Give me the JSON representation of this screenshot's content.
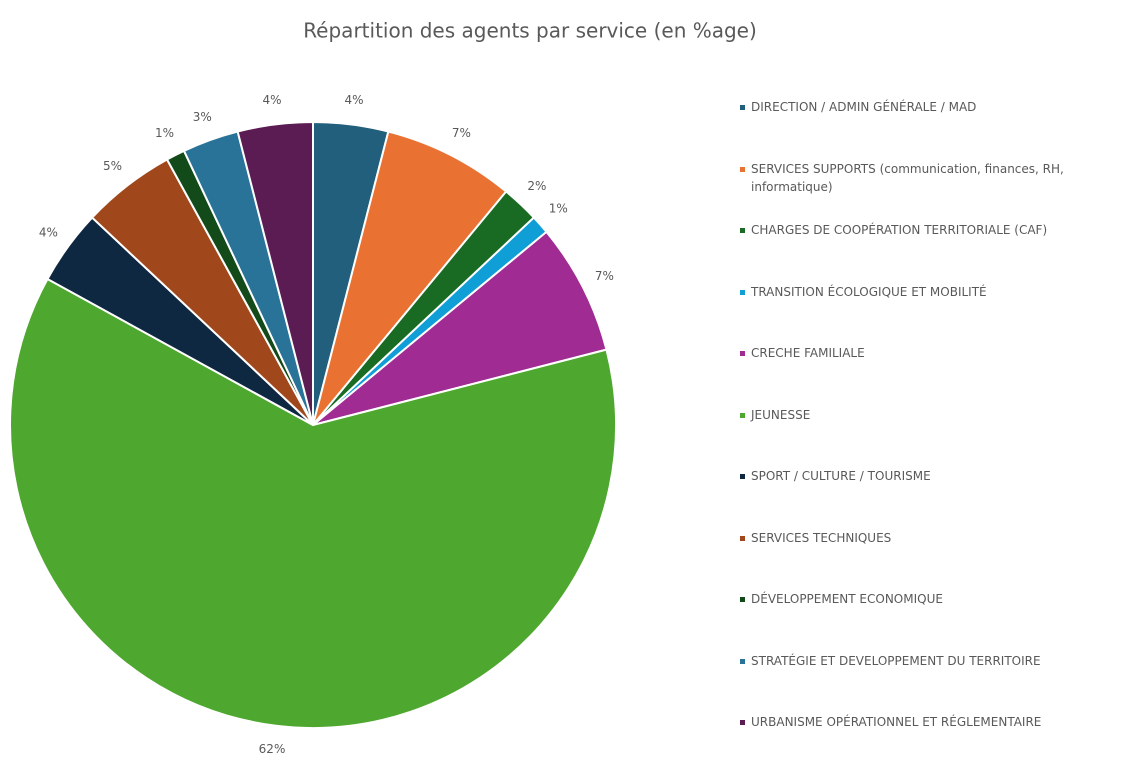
{
  "chart_data": {
    "type": "pie",
    "title": "Répartition des agents par service (en %age)",
    "categories": [
      "DIRECTION / ADMIN GÉNÉRALE / MAD",
      "SERVICES SUPPORTS (communication, finances, RH, informatique)",
      "CHARGES DE COOPÉRATION TERRITORIALE (CAF)",
      "TRANSITION ÉCOLOGIQUE ET MOBILITÉ",
      "CRECHE FAMILIALE",
      "JEUNESSE",
      "SPORT / CULTURE / TOURISME",
      "SERVICES TECHNIQUES",
      "DÉVELOPPEMENT ECONOMIQUE",
      "STRATÉGIE ET DEVELOPPEMENT DU TERRITOIRE",
      "URBANISME OPÉRATIONNEL ET RÉGLEMENTAIRE"
    ],
    "values": [
      4,
      7,
      2,
      1,
      7,
      62,
      4,
      5,
      1,
      3,
      4
    ],
    "value_labels": [
      "4%",
      "7%",
      "2%",
      "1%",
      "7%",
      "62%",
      "4%",
      "5%",
      "1%",
      "3%",
      "4%"
    ],
    "colors": [
      "#215f7d",
      "#e97132",
      "#196b24",
      "#0f9ed5",
      "#a02b93",
      "#4ea72e",
      "#0e2841",
      "#a0481c",
      "#134a1a",
      "#2a7398",
      "#5a1c52"
    ],
    "legend": "right"
  }
}
